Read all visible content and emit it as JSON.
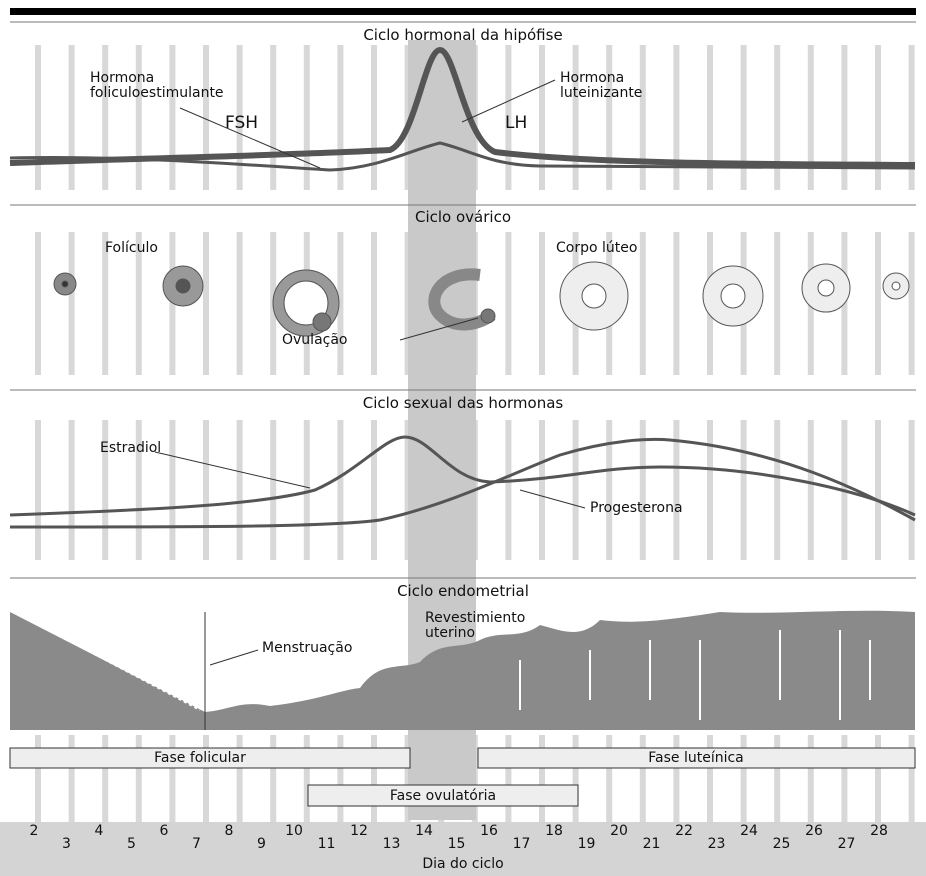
{
  "panels": {
    "pituitary": {
      "title": "Ciclo hormonal da hipófise",
      "fsh_name": [
        "Hormona",
        "foliculoestimulante"
      ],
      "fsh": "FSH",
      "lh": "LH",
      "lh_name": [
        "Hormona",
        "luteinizante"
      ]
    },
    "ovarian": {
      "title": "Ciclo ovárico",
      "follicle": "Folículo",
      "corpus_luteum": "Corpo lúteo",
      "ovulation": "Ovulação"
    },
    "hormones": {
      "title": "Ciclo sexual das hormonas",
      "estradiol": "Estradiol",
      "progesterone": "Progesterona"
    },
    "endometrial": {
      "title": "Ciclo endometrial",
      "menstruation": "Menstruação",
      "lining": [
        "Revestimiento",
        "uterino"
      ]
    }
  },
  "phases": {
    "follicular": "Fase folicular",
    "luteal": "Fase luteínica",
    "ovulatory": "Fase ovulatória"
  },
  "days": [
    "2",
    "3",
    "4",
    "5",
    "6",
    "7",
    "8",
    "9",
    "10",
    "11",
    "12",
    "13",
    "14",
    "15",
    "16",
    "17",
    "18",
    "19",
    "20",
    "21",
    "22",
    "23",
    "24",
    "25",
    "26",
    "27",
    "28"
  ],
  "axis_label": "Dia do ciclo"
}
